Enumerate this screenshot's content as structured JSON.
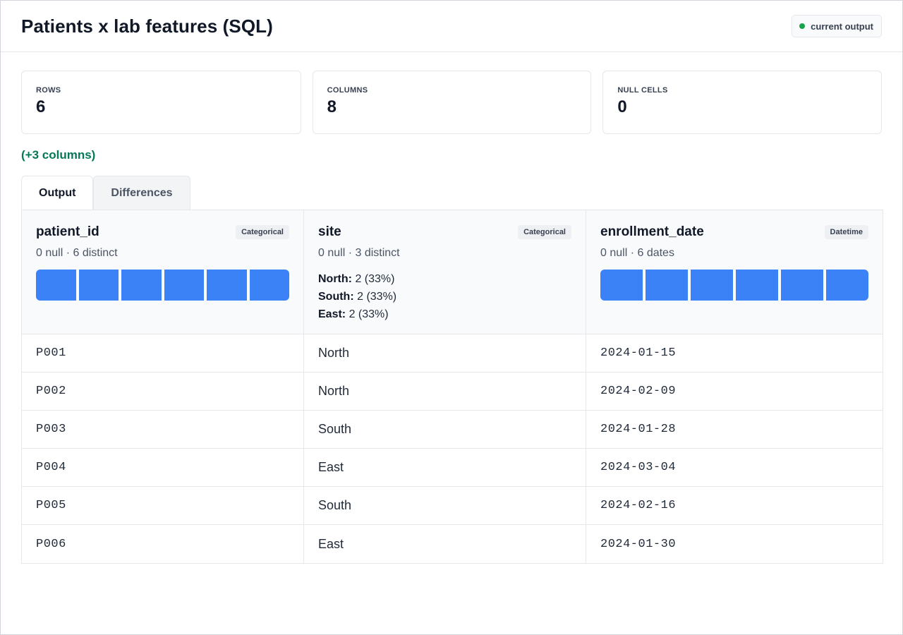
{
  "header": {
    "title": "Patients x lab features (SQL)",
    "status_label": "current output",
    "status_color": "#16a34a"
  },
  "stats": [
    {
      "label": "ROWS",
      "value": "6"
    },
    {
      "label": "COLUMNS",
      "value": "8"
    },
    {
      "label": "NULL CELLS",
      "value": "0"
    }
  ],
  "delta_note": "(+3 columns)",
  "tabs": [
    {
      "label": "Output",
      "active": true
    },
    {
      "label": "Differences",
      "active": false
    }
  ],
  "columns": [
    {
      "name": "patient_id",
      "type": "Categorical",
      "summary": "0 null · 6 distinct",
      "bar_fractions": [
        0.1667,
        0.1667,
        0.1667,
        0.1667,
        0.1667,
        0.1667
      ]
    },
    {
      "name": "site",
      "type": "Categorical",
      "summary": "0 null · 3 distinct",
      "distribution": [
        {
          "label": "North:",
          "value": "2 (33%)"
        },
        {
          "label": "South:",
          "value": "2 (33%)"
        },
        {
          "label": "East:",
          "value": "2 (33%)"
        }
      ]
    },
    {
      "name": "enrollment_date",
      "type": "Datetime",
      "summary": "0 null · 6 dates",
      "bar_fractions": [
        0.1667,
        0.1667,
        0.1667,
        0.1667,
        0.1667,
        0.1667
      ]
    }
  ],
  "rows": [
    {
      "patient_id": "P001",
      "site": "North",
      "enrollment_date": "2024-01-15"
    },
    {
      "patient_id": "P002",
      "site": "North",
      "enrollment_date": "2024-02-09"
    },
    {
      "patient_id": "P003",
      "site": "South",
      "enrollment_date": "2024-01-28"
    },
    {
      "patient_id": "P004",
      "site": "East",
      "enrollment_date": "2024-03-04"
    },
    {
      "patient_id": "P005",
      "site": "South",
      "enrollment_date": "2024-02-16"
    },
    {
      "patient_id": "P006",
      "site": "East",
      "enrollment_date": "2024-01-30"
    }
  ],
  "accent_color": "#3b82f6",
  "delta_color": "#047857"
}
